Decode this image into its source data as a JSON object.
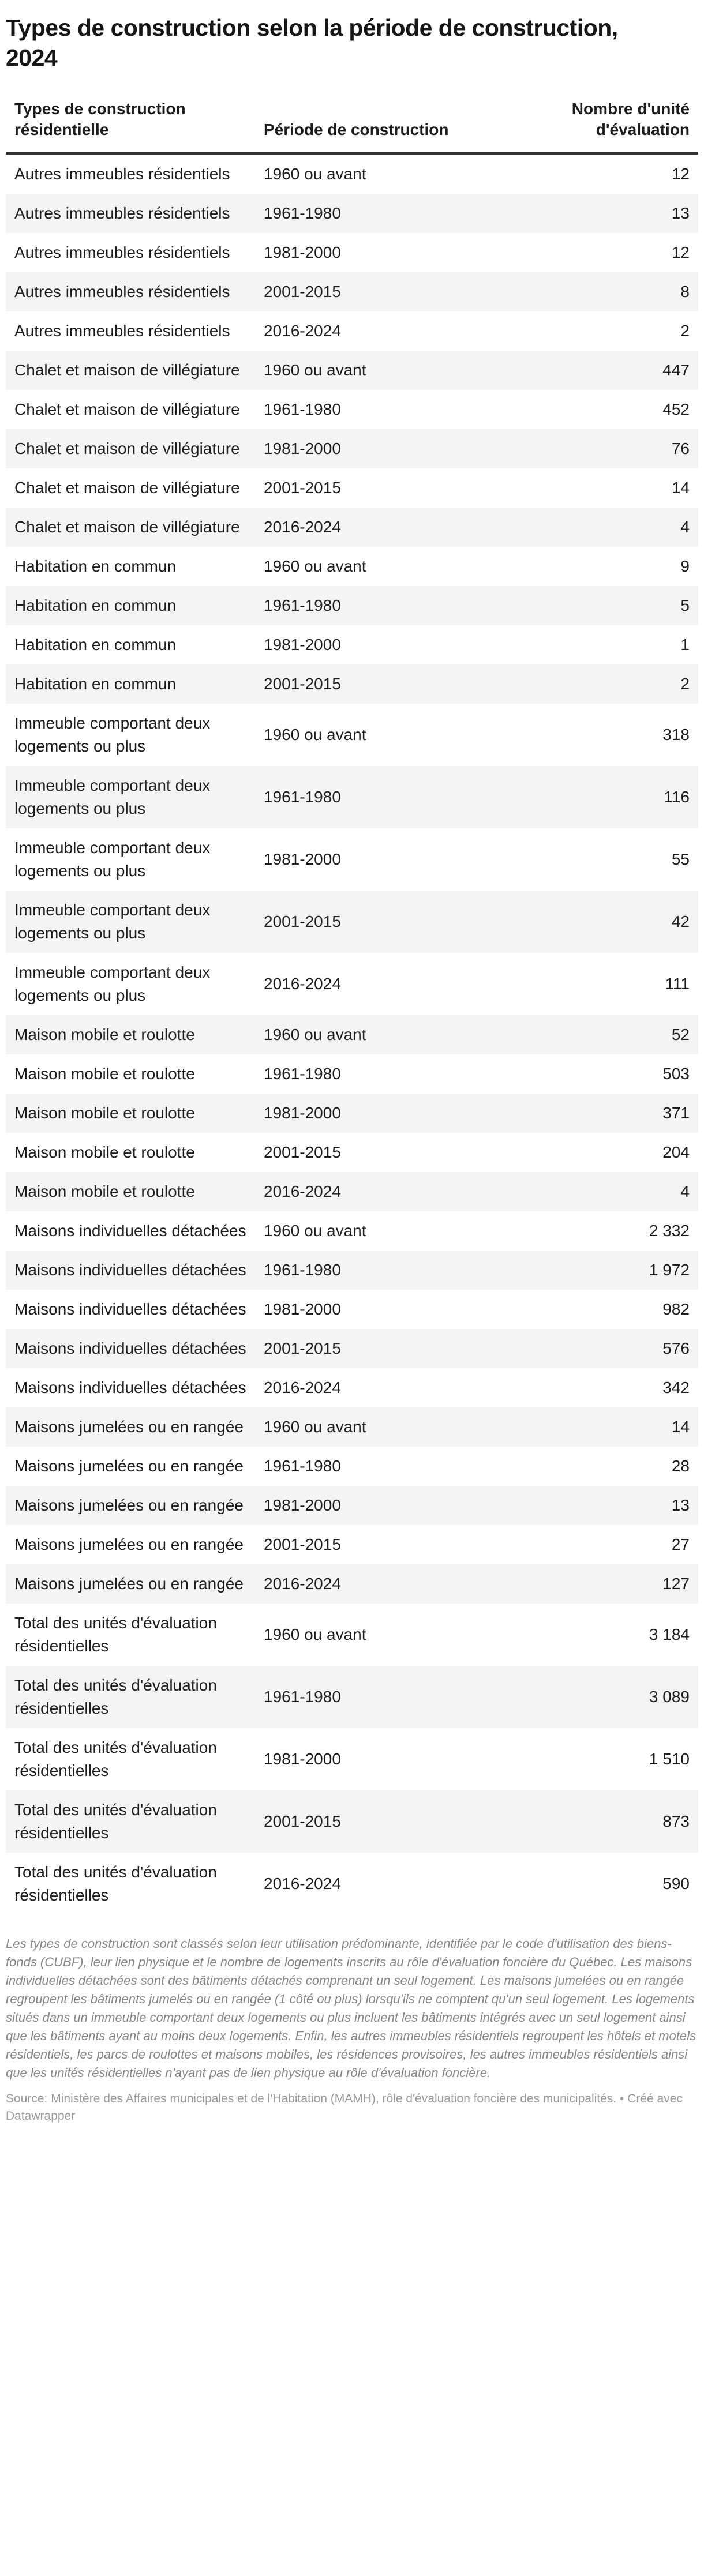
{
  "chart_data": {
    "type": "table",
    "title": "Types de construction selon la période de construction, 2024",
    "columns": [
      "Types de construction résidentielle",
      "Période de construction",
      "Nombre d'unité d'évaluation"
    ],
    "rows": [
      {
        "type": "Autres immeubles résidentiels",
        "period": "1960 ou avant",
        "value": 12,
        "display": "12"
      },
      {
        "type": "Autres immeubles résidentiels",
        "period": "1961-1980",
        "value": 13,
        "display": "13"
      },
      {
        "type": "Autres immeubles résidentiels",
        "period": "1981-2000",
        "value": 12,
        "display": "12"
      },
      {
        "type": "Autres immeubles résidentiels",
        "period": "2001-2015",
        "value": 8,
        "display": "8"
      },
      {
        "type": "Autres immeubles résidentiels",
        "period": "2016-2024",
        "value": 2,
        "display": "2"
      },
      {
        "type": "Chalet et maison de villégiature",
        "period": "1960 ou avant",
        "value": 447,
        "display": "447"
      },
      {
        "type": "Chalet et maison de villégiature",
        "period": "1961-1980",
        "value": 452,
        "display": "452"
      },
      {
        "type": "Chalet et maison de villégiature",
        "period": "1981-2000",
        "value": 76,
        "display": "76"
      },
      {
        "type": "Chalet et maison de villégiature",
        "period": "2001-2015",
        "value": 14,
        "display": "14"
      },
      {
        "type": "Chalet et maison de villégiature",
        "period": "2016-2024",
        "value": 4,
        "display": "4"
      },
      {
        "type": "Habitation en commun",
        "period": "1960 ou avant",
        "value": 9,
        "display": "9"
      },
      {
        "type": "Habitation en commun",
        "period": "1961-1980",
        "value": 5,
        "display": "5"
      },
      {
        "type": "Habitation en commun",
        "period": "1981-2000",
        "value": 1,
        "display": "1"
      },
      {
        "type": "Habitation en commun",
        "period": "2001-2015",
        "value": 2,
        "display": "2"
      },
      {
        "type": "Immeuble comportant deux logements ou plus",
        "period": "1960 ou avant",
        "value": 318,
        "display": "318"
      },
      {
        "type": "Immeuble comportant deux logements ou plus",
        "period": "1961-1980",
        "value": 116,
        "display": "116"
      },
      {
        "type": "Immeuble comportant deux logements ou plus",
        "period": "1981-2000",
        "value": 55,
        "display": "55"
      },
      {
        "type": "Immeuble comportant deux logements ou plus",
        "period": "2001-2015",
        "value": 42,
        "display": "42"
      },
      {
        "type": "Immeuble comportant deux logements ou plus",
        "period": "2016-2024",
        "value": 111,
        "display": "111"
      },
      {
        "type": "Maison mobile et roulotte",
        "period": "1960 ou avant",
        "value": 52,
        "display": "52"
      },
      {
        "type": "Maison mobile et roulotte",
        "period": "1961-1980",
        "value": 503,
        "display": "503"
      },
      {
        "type": "Maison mobile et roulotte",
        "period": "1981-2000",
        "value": 371,
        "display": "371"
      },
      {
        "type": "Maison mobile et roulotte",
        "period": "2001-2015",
        "value": 204,
        "display": "204"
      },
      {
        "type": "Maison mobile et roulotte",
        "period": "2016-2024",
        "value": 4,
        "display": "4"
      },
      {
        "type": "Maisons individuelles détachées",
        "period": "1960 ou avant",
        "value": 2332,
        "display": "2 332"
      },
      {
        "type": "Maisons individuelles détachées",
        "period": "1961-1980",
        "value": 1972,
        "display": "1 972"
      },
      {
        "type": "Maisons individuelles détachées",
        "period": "1981-2000",
        "value": 982,
        "display": "982"
      },
      {
        "type": "Maisons individuelles détachées",
        "period": "2001-2015",
        "value": 576,
        "display": "576"
      },
      {
        "type": "Maisons individuelles détachées",
        "period": "2016-2024",
        "value": 342,
        "display": "342"
      },
      {
        "type": "Maisons jumelées ou en rangée",
        "period": "1960 ou avant",
        "value": 14,
        "display": "14"
      },
      {
        "type": "Maisons jumelées ou en rangée",
        "period": "1961-1980",
        "value": 28,
        "display": "28"
      },
      {
        "type": "Maisons jumelées ou en rangée",
        "period": "1981-2000",
        "value": 13,
        "display": "13"
      },
      {
        "type": "Maisons jumelées ou en rangée",
        "period": "2001-2015",
        "value": 27,
        "display": "27"
      },
      {
        "type": "Maisons jumelées ou en rangée",
        "period": "2016-2024",
        "value": 127,
        "display": "127"
      },
      {
        "type": "Total des unités d'évaluation résidentielles",
        "period": "1960 ou avant",
        "value": 3184,
        "display": "3 184"
      },
      {
        "type": "Total des unités d'évaluation résidentielles",
        "period": "1961-1980",
        "value": 3089,
        "display": "3 089"
      },
      {
        "type": "Total des unités d'évaluation résidentielles",
        "period": "1981-2000",
        "value": 1510,
        "display": "1 510"
      },
      {
        "type": "Total des unités d'évaluation résidentielles",
        "period": "2001-2015",
        "value": 873,
        "display": "873"
      },
      {
        "type": "Total des unités d'évaluation résidentielles",
        "period": "2016-2024",
        "value": 590,
        "display": "590"
      }
    ],
    "layout_hints": {
      "zebra_striping": true,
      "value_column_align": "right",
      "header_rule": true
    }
  },
  "footer": {
    "notes": "Les types de construction sont classés selon leur utilisation prédominante, identifiée par le code d'utilisation des biens-fonds (CUBF), leur lien physique et le nombre de logements inscrits au rôle d'évaluation foncière du Québec. Les maisons individuelles détachées sont des bâtiments détachés comprenant un seul logement. Les maisons jumelées ou en rangée regroupent les bâtiments jumelés ou en rangée (1 côté ou plus) lorsqu'ils ne comptent qu'un seul logement. Les logements situés dans un immeuble comportant deux logements ou plus incluent les bâtiments intégrés avec un seul logement ainsi que les bâtiments ayant au moins deux logements. Enfin, les autres immeubles résidentiels regroupent les hôtels et motels résidentiels, les parcs de roulottes et maisons mobiles, les résidences provisoires, les autres immeubles résidentiels ainsi que les unités résidentielles n'ayant pas de lien physique au rôle d'évaluation foncière.",
    "source_label": "Source:",
    "source_text": " Ministère des Affaires municipales et de l'Habitation (MAMH), rôle d'évaluation foncière des municipalités.",
    "separator": " • ",
    "credit": "Créé avec Datawrapper"
  },
  "colors": {
    "row_alt_bg": "#f4f4f4",
    "header_rule": "#333333",
    "body_text": "#1d1d1d",
    "notes_text": "#858585",
    "source_text": "#9b9b9b"
  }
}
